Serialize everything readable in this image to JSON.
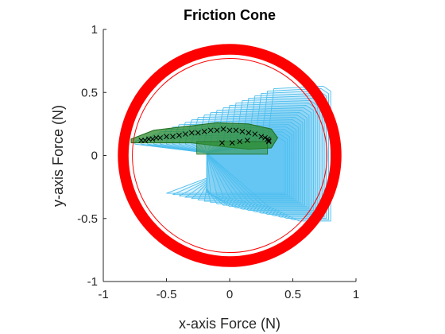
{
  "chart_data": {
    "type": "scatter",
    "title": "Friction Cone",
    "xlabel": "x-axis Force (N)",
    "ylabel": "y-axis Force (N)",
    "xlim": [
      -1,
      1
    ],
    "ylim": [
      -1,
      1
    ],
    "xticks": [
      -1,
      -0.5,
      0,
      0.5,
      1
    ],
    "yticks": [
      -1,
      -0.5,
      0,
      0.5,
      1
    ],
    "xtick_labels": [
      "-1",
      "-0.5",
      "0",
      "0.5",
      "1"
    ],
    "ytick_labels": [
      "-1",
      "-0.5",
      "0",
      "0.5",
      "1"
    ],
    "grid": false,
    "colors": {
      "cone": "#ff0000",
      "wrench_outline": "#4dbeee",
      "band_fill": "#2e8b2e",
      "markers": "#000000",
      "axis": "#262626"
    },
    "friction_cone": {
      "center": [
        0,
        0
      ],
      "radius_outer": 0.885,
      "radius_inner": 0.8,
      "thin_ring_radius": 0.77
    },
    "wrench_polygons": {
      "count": 22,
      "left_edge_range": [
        -0.75,
        0.3
      ],
      "right_edge_range": [
        0.44,
        0.8
      ],
      "top_range": [
        0.15,
        0.55
      ],
      "bottom_range": [
        -0.3,
        -0.52
      ]
    },
    "force_band": {
      "outline": [
        [
          -0.78,
          0.13
        ],
        [
          -0.6,
          0.2
        ],
        [
          -0.35,
          0.23
        ],
        [
          -0.1,
          0.26
        ],
        [
          0.15,
          0.25
        ],
        [
          0.33,
          0.21
        ],
        [
          0.38,
          0.14
        ],
        [
          0.33,
          0.06
        ],
        [
          0.15,
          0.05
        ],
        [
          -0.05,
          0.07
        ],
        [
          -0.3,
          0.1
        ],
        [
          -0.55,
          0.1
        ],
        [
          -0.78,
          0.1
        ]
      ]
    },
    "series": [
      {
        "marker": "x",
        "x": [
          -0.7,
          -0.67,
          -0.64,
          -0.61,
          -0.58,
          -0.55,
          -0.5,
          -0.45,
          -0.4,
          -0.35,
          -0.3,
          -0.25,
          -0.2,
          -0.15,
          -0.1,
          -0.05,
          0,
          0.05,
          0.1,
          0.15,
          0.2,
          0.25,
          0.28,
          0.3,
          0.31,
          0.31,
          -0.06,
          0.02,
          0.08,
          0.14
        ],
        "y": [
          0.12,
          0.12,
          0.13,
          0.13,
          0.14,
          0.14,
          0.15,
          0.15,
          0.16,
          0.17,
          0.18,
          0.18,
          0.19,
          0.2,
          0.2,
          0.21,
          0.2,
          0.2,
          0.19,
          0.18,
          0.17,
          0.15,
          0.14,
          0.13,
          0.12,
          0.11,
          0.1,
          0.1,
          0.11,
          0.12
        ]
      }
    ]
  }
}
